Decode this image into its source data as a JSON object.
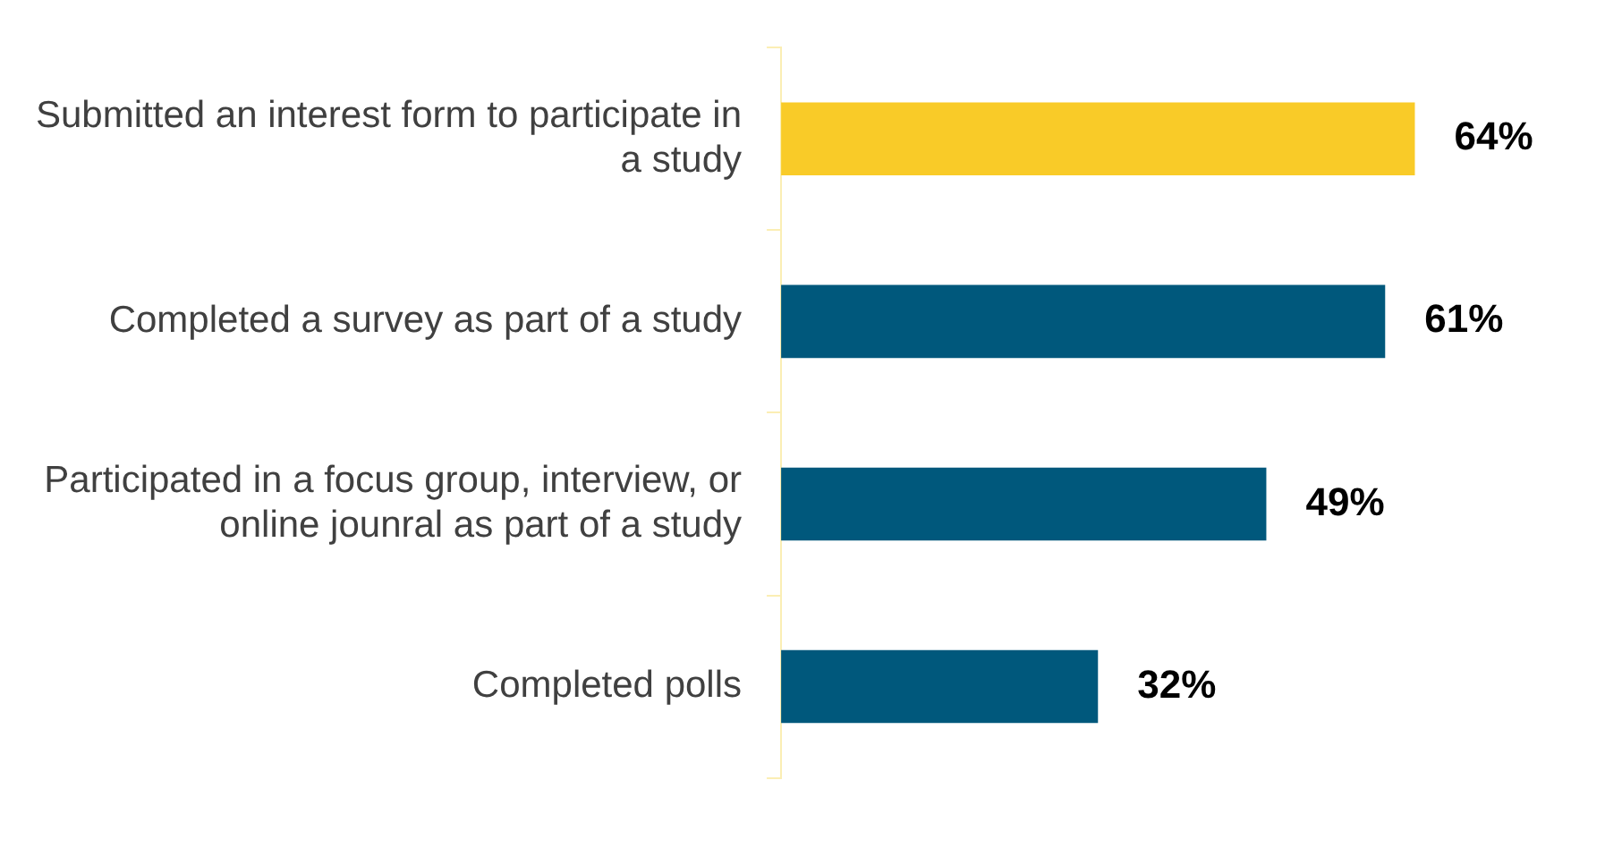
{
  "chart_data": {
    "type": "bar",
    "orientation": "horizontal",
    "categories": [
      "Submitted an interest form to participate in a study",
      "Completed a survey as part of a study",
      "Participated in a focus group, interview, or online jounral as part of a study",
      "Completed polls"
    ],
    "values": [
      64,
      61,
      49,
      32
    ],
    "colors": [
      "#f9cb28",
      "#00587c",
      "#00587c",
      "#00587c"
    ],
    "value_labels": [
      "64%",
      "61%",
      "49%",
      "32%"
    ],
    "grid": false,
    "legend": false
  }
}
